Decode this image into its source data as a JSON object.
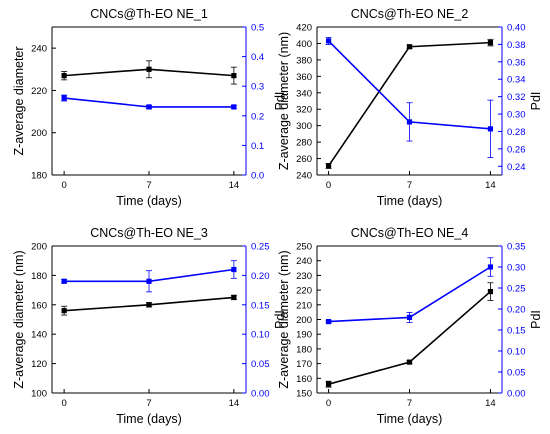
{
  "colors": {
    "z": "#000000",
    "pdi": "#0000ff",
    "axis": "#000000"
  },
  "chart_data": [
    {
      "type": "line",
      "title": "CNCs@Th-EO NE_1",
      "xlabel": "Time (days)",
      "ylabel_left": "Z-average diameter",
      "ylabel_right": "PdI",
      "x": [
        0,
        7,
        14
      ],
      "xticks": [
        "0",
        "7",
        "14"
      ],
      "xlim": [
        -1,
        15
      ],
      "ylim_left": [
        180,
        250
      ],
      "yticks_left": [
        180,
        200,
        220,
        240
      ],
      "ylim_right": [
        0,
        0.5
      ],
      "yticks_right": [
        "0.0",
        "0.1",
        "0.2",
        "0.3",
        "0.4",
        "0.5"
      ],
      "series": [
        {
          "axis": "left",
          "color": "#000000",
          "values": [
            227,
            230,
            227
          ],
          "errors": [
            2,
            4,
            4
          ]
        },
        {
          "axis": "right",
          "color": "#0000ff",
          "values": [
            0.26,
            0.23,
            0.23
          ],
          "errors": [
            0.01,
            0.005,
            0.005
          ]
        }
      ]
    },
    {
      "type": "line",
      "title": "CNCs@Th-EO NE_2",
      "xlabel": "Time (days)",
      "ylabel_left": "Z-average diameter (nm)",
      "ylabel_right": "PdI",
      "x": [
        0,
        7,
        14
      ],
      "xticks": [
        "0",
        "7",
        "14"
      ],
      "xlim": [
        -1,
        15
      ],
      "ylim_left": [
        240,
        420
      ],
      "yticks_left": [
        240,
        260,
        280,
        300,
        320,
        340,
        360,
        380,
        400,
        420
      ],
      "ylim_right": [
        0.23,
        0.4
      ],
      "yticks_right": [
        "0.24",
        "0.26",
        "0.28",
        "0.30",
        "0.32",
        "0.34",
        "0.36",
        "0.38",
        "0.40"
      ],
      "series": [
        {
          "axis": "left",
          "color": "#000000",
          "values": [
            251,
            396,
            401
          ],
          "errors": [
            3,
            2,
            4
          ]
        },
        {
          "axis": "right",
          "color": "#0000ff",
          "values": [
            0.384,
            0.291,
            0.283
          ],
          "errors": [
            0.004,
            0.022,
            0.033
          ]
        }
      ]
    },
    {
      "type": "line",
      "title": "CNCs@Th-EO NE_3",
      "xlabel": "Time (days)",
      "ylabel_left": "Z-average diameter (nm)",
      "ylabel_right": "PdI",
      "x": [
        0,
        7,
        14
      ],
      "xticks": [
        "0",
        "7",
        "14"
      ],
      "xlim": [
        -1,
        15
      ],
      "ylim_left": [
        100,
        200
      ],
      "yticks_left": [
        100,
        120,
        140,
        160,
        180,
        200
      ],
      "ylim_right": [
        0,
        0.25
      ],
      "yticks_right": [
        "0.00",
        "0.05",
        "0.10",
        "0.15",
        "0.20",
        "0.25"
      ],
      "series": [
        {
          "axis": "left",
          "color": "#000000",
          "values": [
            156,
            160,
            165
          ],
          "errors": [
            3,
            1.5,
            1.5
          ]
        },
        {
          "axis": "right",
          "color": "#0000ff",
          "values": [
            0.19,
            0.19,
            0.21
          ],
          "errors": [
            0.003,
            0.018,
            0.015
          ]
        }
      ]
    },
    {
      "type": "line",
      "title": "CNCs@Th-EO NE_4",
      "xlabel": "Time (days)",
      "ylabel_left": "Z-average diameter (nm)",
      "ylabel_right": "PdI",
      "x": [
        0,
        7,
        14
      ],
      "xticks": [
        "0",
        "7",
        "14"
      ],
      "xlim": [
        -1,
        15
      ],
      "ylim_left": [
        150,
        250
      ],
      "yticks_left": [
        150,
        160,
        170,
        180,
        190,
        200,
        210,
        220,
        230,
        240,
        250
      ],
      "ylim_right": [
        0,
        0.35
      ],
      "yticks_right": [
        "0.00",
        "0.05",
        "0.10",
        "0.15",
        "0.20",
        "0.25",
        "0.30",
        "0.35"
      ],
      "series": [
        {
          "axis": "left",
          "color": "#000000",
          "values": [
            156,
            171,
            219
          ],
          "errors": [
            2,
            1,
            6
          ]
        },
        {
          "axis": "right",
          "color": "#0000ff",
          "values": [
            0.17,
            0.18,
            0.3
          ],
          "errors": [
            0.003,
            0.012,
            0.022
          ]
        }
      ]
    }
  ]
}
